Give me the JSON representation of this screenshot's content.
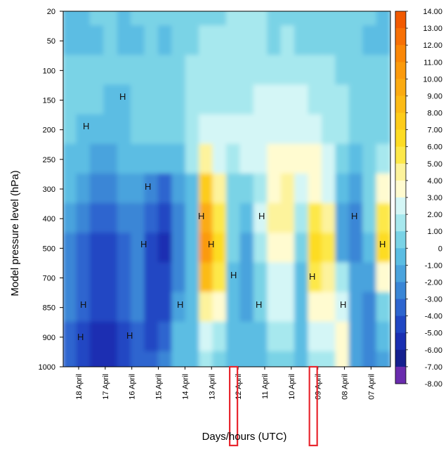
{
  "chart_data": {
    "type": "heatmap",
    "title": "",
    "xlabel": "Days/hours (UTC)",
    "ylabel": "Model pressure level (hPa)",
    "x_categories": [
      "18 April",
      "17 April",
      "16 April",
      "15 April",
      "14 April",
      "13 April",
      "12 April",
      "11 April",
      "10 April",
      "09 April",
      "08 April",
      "07 April"
    ],
    "x_direction": "time decreasing left to right",
    "y_levels_hPa": [
      20,
      50,
      100,
      150,
      200,
      250,
      300,
      400,
      500,
      700,
      850,
      900,
      1000
    ],
    "y_ticks": [
      "20",
      "50",
      "100",
      "150",
      "200",
      "250",
      "300",
      "400",
      "500",
      "700",
      "850",
      "900",
      "1000"
    ],
    "colorbar": {
      "levels": [
        "14.00",
        "13.00",
        "12.00",
        "11.00",
        "10.00",
        "9.00",
        "8.00",
        "7.00",
        "6.00",
        "5.00",
        "4.00",
        "3.00",
        "2.00",
        "1.00",
        "0",
        "-1.00",
        "-2.00",
        "-3.00",
        "-4.00",
        "-5.00",
        "-6.00",
        "-7.00",
        "-8.00"
      ],
      "colors": [
        "#f25a00",
        "#f77006",
        "#fa8707",
        "#fb9a0c",
        "#fbab12",
        "#fcbb16",
        "#fdcc1a",
        "#fddc24",
        "#fde84a",
        "#fdf39c",
        "#fffbd0",
        "#d4f6f6",
        "#a7e8ee",
        "#7ad3e6",
        "#5bbde3",
        "#4aa3dd",
        "#3a86d6",
        "#2d65cf",
        "#2047c3",
        "#1a2fb2",
        "#15208f",
        "#6a2cae"
      ],
      "range": [
        -8,
        14
      ]
    },
    "value_grid_cols": 24,
    "value_grid_levels": 13,
    "values": [
      [
        0,
        0,
        0.5,
        0.5,
        0,
        0.5,
        0.5,
        0.5,
        1,
        1,
        1,
        1,
        1.5,
        2,
        1.5,
        1,
        1,
        0.5,
        0.5,
        1,
        0.5,
        0.5,
        0.5,
        0
      ],
      [
        0,
        0,
        0,
        0.5,
        0,
        0,
        0.5,
        0,
        0.5,
        1,
        2,
        2,
        1.5,
        2,
        1.5,
        1,
        1.5,
        1,
        1,
        1,
        0.5,
        0.5,
        0,
        0
      ],
      [
        0.5,
        0.5,
        0.5,
        0.5,
        0.5,
        0.5,
        0.5,
        0.5,
        1,
        1.5,
        2,
        2,
        1.5,
        2,
        2,
        2,
        2,
        2,
        1.5,
        1.5,
        1,
        1,
        0.5,
        0.5
      ],
      [
        0.5,
        0.5,
        0.5,
        0,
        0,
        0.5,
        0.5,
        0.5,
        1,
        1.5,
        2,
        2,
        2,
        2,
        2.5,
        2.5,
        2.5,
        2.5,
        2,
        2,
        1.5,
        1,
        0.5,
        0.5
      ],
      [
        0.5,
        0,
        -0.5,
        -0.5,
        0,
        0.5,
        0.5,
        0.5,
        0.5,
        1.5,
        2.5,
        2.5,
        2.5,
        2.5,
        3,
        3,
        3,
        3,
        2.5,
        2,
        1.5,
        1,
        0.5,
        0.5
      ],
      [
        0,
        -0.5,
        -1,
        -1,
        -0.5,
        0,
        0,
        0,
        0,
        2,
        5,
        3,
        2,
        2.5,
        3,
        3.5,
        3.5,
        3.5,
        4,
        3,
        1,
        0,
        1,
        1.5
      ],
      [
        -0.5,
        -1.5,
        -2,
        -2,
        -1.5,
        -1,
        -2,
        -3,
        -1,
        0,
        8,
        5,
        1,
        0.5,
        2,
        4,
        5,
        3,
        4,
        3,
        0,
        -1,
        1,
        4
      ],
      [
        -1,
        -2,
        -3,
        -3,
        -2,
        -2,
        -3,
        -4,
        -2,
        0,
        10,
        6,
        1,
        0,
        3,
        5,
        5,
        2,
        6,
        5,
        -1,
        -2,
        1,
        6
      ],
      [
        -2,
        -3,
        -4,
        -4,
        -3,
        -2,
        -4,
        -5,
        -2,
        0,
        11,
        7,
        1,
        -1,
        2,
        4,
        4,
        1,
        7,
        6,
        -1,
        -2,
        0,
        7
      ],
      [
        -2,
        -3,
        -4,
        -4,
        -3,
        -2,
        -4,
        -4,
        -2,
        0,
        9,
        6,
        0,
        -1,
        1,
        3,
        3,
        0,
        6,
        5,
        2,
        -1,
        -1,
        4
      ],
      [
        -2,
        -3,
        -4,
        -4,
        -3,
        -2,
        -4,
        -4,
        -1,
        0,
        5,
        4,
        0,
        -1,
        1,
        3,
        3,
        0,
        4,
        4,
        3,
        -1,
        -2,
        1
      ],
      [
        -3,
        -4,
        -5,
        -5,
        -4,
        -3,
        -4,
        -3,
        0,
        0,
        3,
        2,
        0,
        -0.5,
        0,
        2,
        2,
        0,
        3,
        3,
        4,
        -1,
        -2,
        0
      ],
      [
        -3,
        -4,
        -5,
        -5,
        -4,
        -3,
        -3,
        -2,
        0,
        0,
        2,
        1,
        -0.5,
        -0.5,
        0,
        1,
        1,
        0,
        2,
        2,
        4,
        -1,
        -2,
        -1
      ]
    ],
    "annotations": [
      "H",
      "H",
      "H",
      "H",
      "H",
      "H",
      "H",
      "H",
      "H",
      "H",
      "H",
      "H",
      "H",
      "H",
      "H",
      "H",
      "H"
    ],
    "highlighted_periods": [
      "12 April",
      "09 April"
    ],
    "highlight_color": "#e8262e",
    "grid": false,
    "legend": "colorbar-right"
  }
}
